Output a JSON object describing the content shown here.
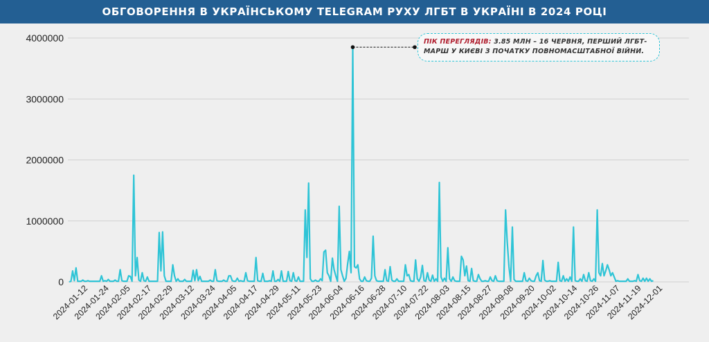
{
  "title": "ОБГОВОРЕННЯ В УКРАЇНСЬКОМУ TELEGRAM РУХУ ЛГБТ В УКРАЇНІ В 2024 РОЦІ",
  "annotation": {
    "highlight": "ПІК ПЕРЕГЛЯДІВ:",
    "text": " 3.85 МЛН – 16 ЧЕРВНЯ, ПЕРШИЙ ЛГБТ-МАРШ У КИЄВІ З ПОЧАТКУ ПОВНОМАСШТАБНОЇ ВІЙНИ."
  },
  "colors": {
    "line": "#2ec4d6",
    "title_bg": "#235f93",
    "highlight": "#b01e2e",
    "grid": "#d0d0d0"
  },
  "chart_data": {
    "type": "line",
    "title": "ОБГОВОРЕННЯ В УКРАЇНСЬКОМУ TELEGRAM РУХУ ЛГБТ В УКРАЇНІ В 2024 РОЦІ",
    "xlabel": "",
    "ylabel": "",
    "x_start": "2024-01-01",
    "x_end": "2024-12-31",
    "ylim": [
      0,
      4000000
    ],
    "y_ticks": [
      0,
      1000000,
      2000000,
      3000000,
      4000000
    ],
    "y_tick_labels": [
      "0",
      "1000000",
      "2000000",
      "3000000",
      "4000000"
    ],
    "x_tick_labels": [
      "2024-01-12",
      "2024-01-24",
      "2024-02-05",
      "2024-02-17",
      "2024-02-29",
      "2024-03-12",
      "2024-03-24",
      "2024-04-05",
      "2024-04-17",
      "2024-04-29",
      "2024-05-11",
      "2024-05-23",
      "2024-06-04",
      "2024-06-16",
      "2024-06-28",
      "2024-07-10",
      "2024-07-22",
      "2024-08-03",
      "2024-08-15",
      "2024-08-27",
      "2024-09-08",
      "2024-09-20",
      "2024-10-02",
      "2024-10-14",
      "2024-10-26",
      "2024-11-07",
      "2024-11-19",
      "2024-12-01"
    ],
    "grid": true,
    "legend": "none",
    "series": [
      {
        "values": [
          {
            "date": "2024-01-01",
            "v": 0
          },
          {
            "date": "2024-01-03",
            "v": 180000
          },
          {
            "date": "2024-01-04",
            "v": 20000
          },
          {
            "date": "2024-01-05",
            "v": 230000
          },
          {
            "date": "2024-01-06",
            "v": 10000
          },
          {
            "date": "2024-01-09",
            "v": 30000
          },
          {
            "date": "2024-01-12",
            "v": 20000
          },
          {
            "date": "2024-01-16",
            "v": 10000
          },
          {
            "date": "2024-01-20",
            "v": 100000
          },
          {
            "date": "2024-01-22",
            "v": 20000
          },
          {
            "date": "2024-01-24",
            "v": 40000
          },
          {
            "date": "2024-01-28",
            "v": 30000
          },
          {
            "date": "2024-01-31",
            "v": 200000
          },
          {
            "date": "2024-02-01",
            "v": 20000
          },
          {
            "date": "2024-02-05",
            "v": 100000
          },
          {
            "date": "2024-02-06",
            "v": 90000
          },
          {
            "date": "2024-02-07",
            "v": 10000
          },
          {
            "date": "2024-02-08",
            "v": 1750000
          },
          {
            "date": "2024-02-09",
            "v": 100000
          },
          {
            "date": "2024-02-10",
            "v": 400000
          },
          {
            "date": "2024-02-11",
            "v": 30000
          },
          {
            "date": "2024-02-13",
            "v": 150000
          },
          {
            "date": "2024-02-14",
            "v": 20000
          },
          {
            "date": "2024-02-16",
            "v": 80000
          },
          {
            "date": "2024-02-18",
            "v": 10000
          },
          {
            "date": "2024-02-22",
            "v": 10000
          },
          {
            "date": "2024-02-23",
            "v": 810000
          },
          {
            "date": "2024-02-24",
            "v": 180000
          },
          {
            "date": "2024-02-25",
            "v": 820000
          },
          {
            "date": "2024-02-26",
            "v": 100000
          },
          {
            "date": "2024-02-28",
            "v": 10000
          },
          {
            "date": "2024-03-02",
            "v": 280000
          },
          {
            "date": "2024-03-03",
            "v": 100000
          },
          {
            "date": "2024-03-05",
            "v": 50000
          },
          {
            "date": "2024-03-08",
            "v": 10000
          },
          {
            "date": "2024-03-09",
            "v": 40000
          },
          {
            "date": "2024-03-12",
            "v": 10000
          },
          {
            "date": "2024-03-14",
            "v": 190000
          },
          {
            "date": "2024-03-15",
            "v": 20000
          },
          {
            "date": "2024-03-16",
            "v": 200000
          },
          {
            "date": "2024-03-17",
            "v": 20000
          },
          {
            "date": "2024-03-18",
            "v": 90000
          },
          {
            "date": "2024-03-20",
            "v": 10000
          },
          {
            "date": "2024-03-24",
            "v": 30000
          },
          {
            "date": "2024-03-27",
            "v": 200000
          },
          {
            "date": "2024-03-28",
            "v": 20000
          },
          {
            "date": "2024-04-01",
            "v": 30000
          },
          {
            "date": "2024-04-04",
            "v": 100000
          },
          {
            "date": "2024-04-05",
            "v": 100000
          },
          {
            "date": "2024-04-06",
            "v": 20000
          },
          {
            "date": "2024-04-09",
            "v": 60000
          },
          {
            "date": "2024-04-11",
            "v": 20000
          },
          {
            "date": "2024-04-14",
            "v": 150000
          },
          {
            "date": "2024-04-15",
            "v": 20000
          },
          {
            "date": "2024-04-17",
            "v": 10000
          },
          {
            "date": "2024-04-20",
            "v": 400000
          },
          {
            "date": "2024-04-21",
            "v": 20000
          },
          {
            "date": "2024-04-24",
            "v": 140000
          },
          {
            "date": "2024-04-25",
            "v": 10000
          },
          {
            "date": "2024-04-28",
            "v": 20000
          },
          {
            "date": "2024-04-30",
            "v": 180000
          },
          {
            "date": "2024-05-01",
            "v": 10000
          },
          {
            "date": "2024-05-03",
            "v": 40000
          },
          {
            "date": "2024-05-05",
            "v": 180000
          },
          {
            "date": "2024-05-06",
            "v": 10000
          },
          {
            "date": "2024-05-09",
            "v": 170000
          },
          {
            "date": "2024-05-10",
            "v": 20000
          },
          {
            "date": "2024-05-12",
            "v": 150000
          },
          {
            "date": "2024-05-13",
            "v": 20000
          },
          {
            "date": "2024-05-15",
            "v": 80000
          },
          {
            "date": "2024-05-17",
            "v": 10000
          },
          {
            "date": "2024-05-19",
            "v": 1180000
          },
          {
            "date": "2024-05-20",
            "v": 400000
          },
          {
            "date": "2024-05-21",
            "v": 1620000
          },
          {
            "date": "2024-05-22",
            "v": 50000
          },
          {
            "date": "2024-05-25",
            "v": 30000
          },
          {
            "date": "2024-05-28",
            "v": 50000
          },
          {
            "date": "2024-05-29",
            "v": 20000
          },
          {
            "date": "2024-05-30",
            "v": 490000
          },
          {
            "date": "2024-05-31",
            "v": 520000
          },
          {
            "date": "2024-06-01",
            "v": 150000
          },
          {
            "date": "2024-06-02",
            "v": 100000
          },
          {
            "date": "2024-06-04",
            "v": 390000
          },
          {
            "date": "2024-06-05",
            "v": 200000
          },
          {
            "date": "2024-06-06",
            "v": 100000
          },
          {
            "date": "2024-06-08",
            "v": 1240000
          },
          {
            "date": "2024-06-09",
            "v": 200000
          },
          {
            "date": "2024-06-10",
            "v": 100000
          },
          {
            "date": "2024-06-12",
            "v": 60000
          },
          {
            "date": "2024-06-13",
            "v": 300000
          },
          {
            "date": "2024-06-14",
            "v": 500000
          },
          {
            "date": "2024-06-15",
            "v": 150000
          },
          {
            "date": "2024-06-16",
            "v": 3850000
          },
          {
            "date": "2024-06-17",
            "v": 250000
          },
          {
            "date": "2024-06-18",
            "v": 230000
          },
          {
            "date": "2024-06-19",
            "v": 280000
          },
          {
            "date": "2024-06-20",
            "v": 50000
          },
          {
            "date": "2024-06-23",
            "v": 80000
          },
          {
            "date": "2024-06-24",
            "v": 20000
          },
          {
            "date": "2024-06-27",
            "v": 60000
          },
          {
            "date": "2024-06-28",
            "v": 750000
          },
          {
            "date": "2024-06-29",
            "v": 100000
          },
          {
            "date": "2024-06-30",
            "v": 20000
          },
          {
            "date": "2024-07-03",
            "v": 10000
          },
          {
            "date": "2024-07-05",
            "v": 200000
          },
          {
            "date": "2024-07-06",
            "v": 20000
          },
          {
            "date": "2024-07-08",
            "v": 250000
          },
          {
            "date": "2024-07-09",
            "v": 30000
          },
          {
            "date": "2024-07-12",
            "v": 50000
          },
          {
            "date": "2024-07-14",
            "v": 10000
          },
          {
            "date": "2024-07-17",
            "v": 280000
          },
          {
            "date": "2024-07-18",
            "v": 100000
          },
          {
            "date": "2024-07-19",
            "v": 120000
          },
          {
            "date": "2024-07-20",
            "v": 20000
          },
          {
            "date": "2024-07-23",
            "v": 360000
          },
          {
            "date": "2024-07-24",
            "v": 50000
          },
          {
            "date": "2024-07-26",
            "v": 80000
          },
          {
            "date": "2024-07-27",
            "v": 270000
          },
          {
            "date": "2024-07-28",
            "v": 20000
          },
          {
            "date": "2024-07-30",
            "v": 150000
          },
          {
            "date": "2024-07-31",
            "v": 30000
          },
          {
            "date": "2024-08-02",
            "v": 110000
          },
          {
            "date": "2024-08-04",
            "v": 50000
          },
          {
            "date": "2024-08-06",
            "v": 1630000
          },
          {
            "date": "2024-08-07",
            "v": 80000
          },
          {
            "date": "2024-08-09",
            "v": 60000
          },
          {
            "date": "2024-08-11",
            "v": 560000
          },
          {
            "date": "2024-08-12",
            "v": 50000
          },
          {
            "date": "2024-08-14",
            "v": 80000
          },
          {
            "date": "2024-08-15",
            "v": 20000
          },
          {
            "date": "2024-08-19",
            "v": 420000
          },
          {
            "date": "2024-08-20",
            "v": 360000
          },
          {
            "date": "2024-08-21",
            "v": 100000
          },
          {
            "date": "2024-08-22",
            "v": 260000
          },
          {
            "date": "2024-08-23",
            "v": 20000
          },
          {
            "date": "2024-08-25",
            "v": 220000
          },
          {
            "date": "2024-08-26",
            "v": 20000
          },
          {
            "date": "2024-08-29",
            "v": 120000
          },
          {
            "date": "2024-08-30",
            "v": 50000
          },
          {
            "date": "2024-09-02",
            "v": 20000
          },
          {
            "date": "2024-09-05",
            "v": 80000
          },
          {
            "date": "2024-09-06",
            "v": 20000
          },
          {
            "date": "2024-09-08",
            "v": 100000
          },
          {
            "date": "2024-09-09",
            "v": 20000
          },
          {
            "date": "2024-09-12",
            "v": 10000
          },
          {
            "date": "2024-09-14",
            "v": 1180000
          },
          {
            "date": "2024-09-15",
            "v": 650000
          },
          {
            "date": "2024-09-16",
            "v": 250000
          },
          {
            "date": "2024-09-18",
            "v": 900000
          },
          {
            "date": "2024-09-19",
            "v": 40000
          },
          {
            "date": "2024-09-22",
            "v": 10000
          },
          {
            "date": "2024-09-25",
            "v": 150000
          },
          {
            "date": "2024-09-26",
            "v": 20000
          },
          {
            "date": "2024-09-28",
            "v": 60000
          },
          {
            "date": "2024-09-29",
            "v": 20000
          },
          {
            "date": "2024-10-02",
            "v": 100000
          },
          {
            "date": "2024-10-03",
            "v": 150000
          },
          {
            "date": "2024-10-04",
            "v": 20000
          },
          {
            "date": "2024-10-06",
            "v": 350000
          },
          {
            "date": "2024-10-07",
            "v": 30000
          },
          {
            "date": "2024-10-10",
            "v": 20000
          },
          {
            "date": "2024-10-13",
            "v": 10000
          },
          {
            "date": "2024-10-15",
            "v": 320000
          },
          {
            "date": "2024-10-16",
            "v": 20000
          },
          {
            "date": "2024-10-18",
            "v": 100000
          },
          {
            "date": "2024-10-20",
            "v": 50000
          },
          {
            "date": "2024-10-22",
            "v": 80000
          },
          {
            "date": "2024-10-24",
            "v": 900000
          },
          {
            "date": "2024-10-25",
            "v": 20000
          },
          {
            "date": "2024-10-28",
            "v": 50000
          },
          {
            "date": "2024-10-30",
            "v": 120000
          },
          {
            "date": "2024-10-31",
            "v": 20000
          },
          {
            "date": "2024-11-02",
            "v": 150000
          },
          {
            "date": "2024-11-03",
            "v": 20000
          },
          {
            "date": "2024-11-05",
            "v": 50000
          },
          {
            "date": "2024-11-07",
            "v": 1180000
          },
          {
            "date": "2024-11-08",
            "v": 150000
          },
          {
            "date": "2024-11-09",
            "v": 100000
          },
          {
            "date": "2024-11-10",
            "v": 300000
          },
          {
            "date": "2024-11-11",
            "v": 100000
          },
          {
            "date": "2024-11-12",
            "v": 180000
          },
          {
            "date": "2024-11-13",
            "v": 280000
          },
          {
            "date": "2024-11-14",
            "v": 200000
          },
          {
            "date": "2024-11-15",
            "v": 100000
          },
          {
            "date": "2024-11-16",
            "v": 150000
          },
          {
            "date": "2024-11-17",
            "v": 80000
          },
          {
            "date": "2024-11-19",
            "v": 20000
          },
          {
            "date": "2024-11-22",
            "v": 10000
          },
          {
            "date": "2024-11-25",
            "v": 50000
          },
          {
            "date": "2024-11-26",
            "v": 10000
          },
          {
            "date": "2024-11-29",
            "v": 20000
          },
          {
            "date": "2024-12-01",
            "v": 120000
          },
          {
            "date": "2024-12-02",
            "v": 20000
          },
          {
            "date": "2024-12-04",
            "v": 60000
          },
          {
            "date": "2024-12-06",
            "v": 60000
          },
          {
            "date": "2024-12-07",
            "v": 10000
          },
          {
            "date": "2024-12-08",
            "v": 50000
          },
          {
            "date": "2024-12-10",
            "v": 20000
          }
        ]
      }
    ]
  }
}
